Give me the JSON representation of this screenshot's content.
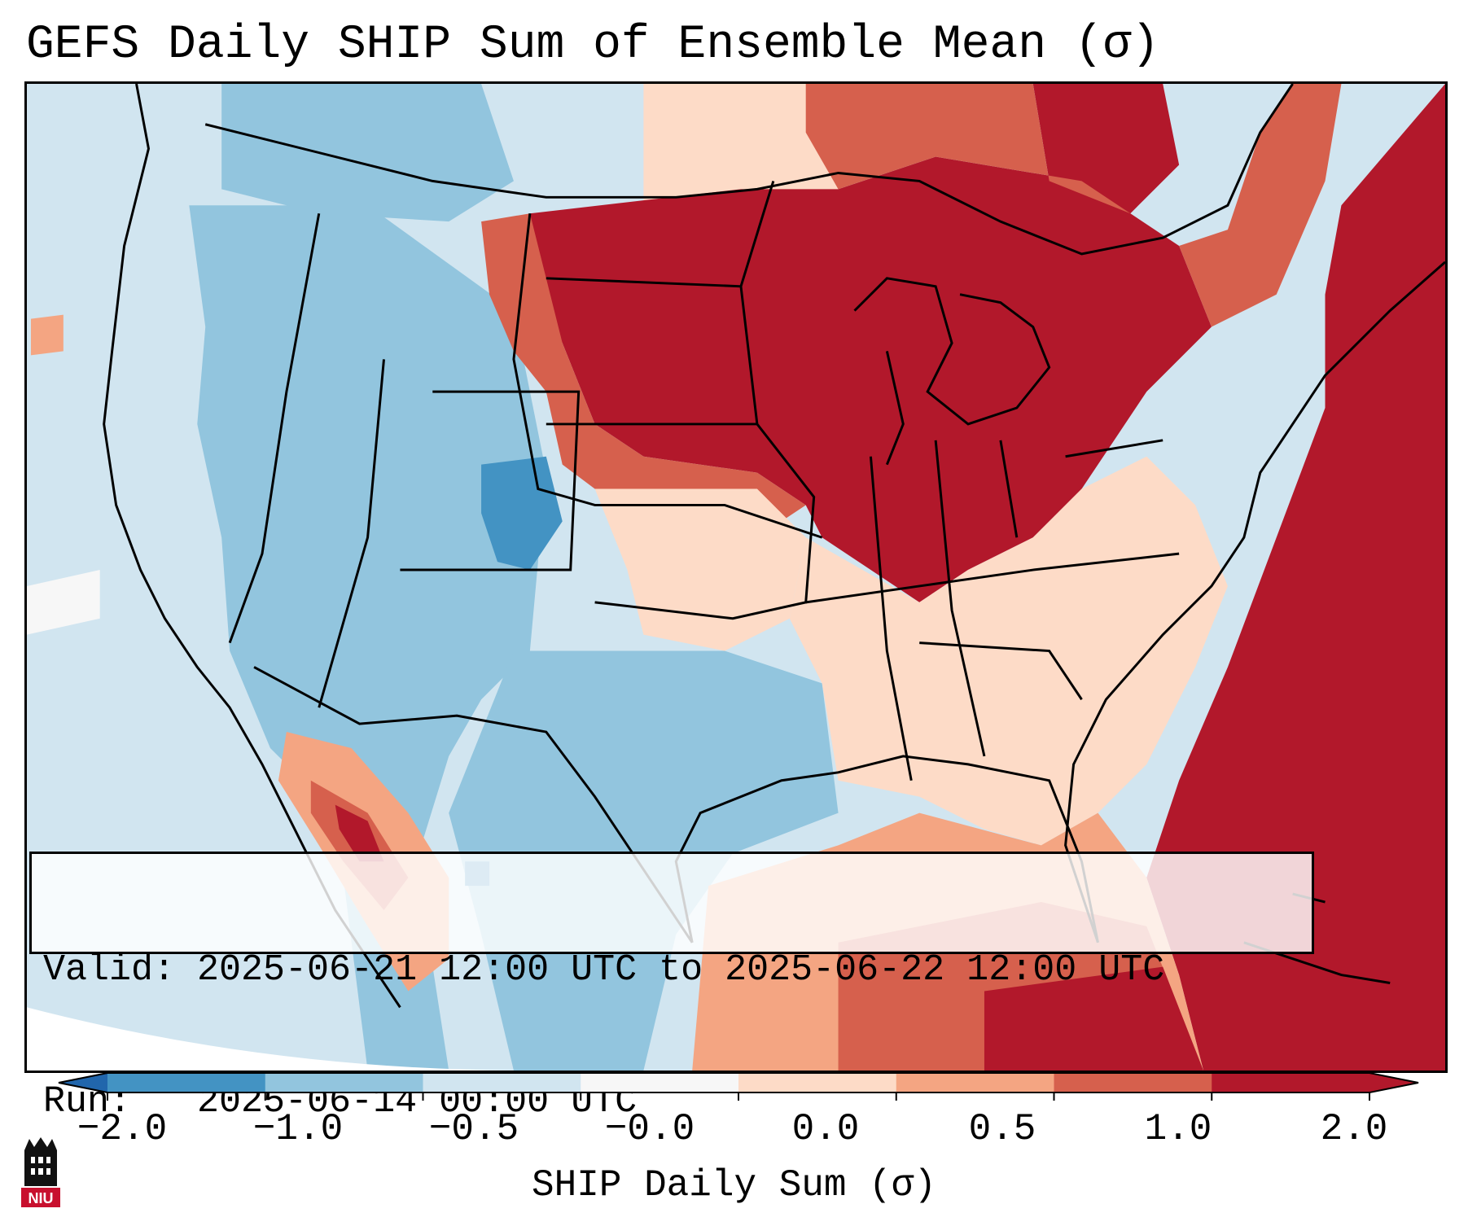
{
  "title": "GEFS Daily SHIP Sum of Ensemble Mean (σ)",
  "info": {
    "valid_line": "Valid: 2025-06-21 12:00 UTC to 2025-06-22 12:00 UTC",
    "run_line": "Run:   2025-06-14 00:00 UTC"
  },
  "colorbar": {
    "label": "SHIP Daily Sum (σ)",
    "ticks": [
      "−2.0",
      "−1.0",
      "−0.5",
      "−0.0",
      "0.0",
      "0.5",
      "1.0",
      "2.0"
    ],
    "colors": [
      "#4393c3",
      "#92c5de",
      "#d1e5f0",
      "#f7f7f7",
      "#fddbc7",
      "#f4a582",
      "#d6604d",
      "#b2182b"
    ],
    "under_color": "#2166ac",
    "over_color": "#b2182b"
  },
  "logo": {
    "text": "NIU",
    "brand_color": "#c8102e"
  }
}
